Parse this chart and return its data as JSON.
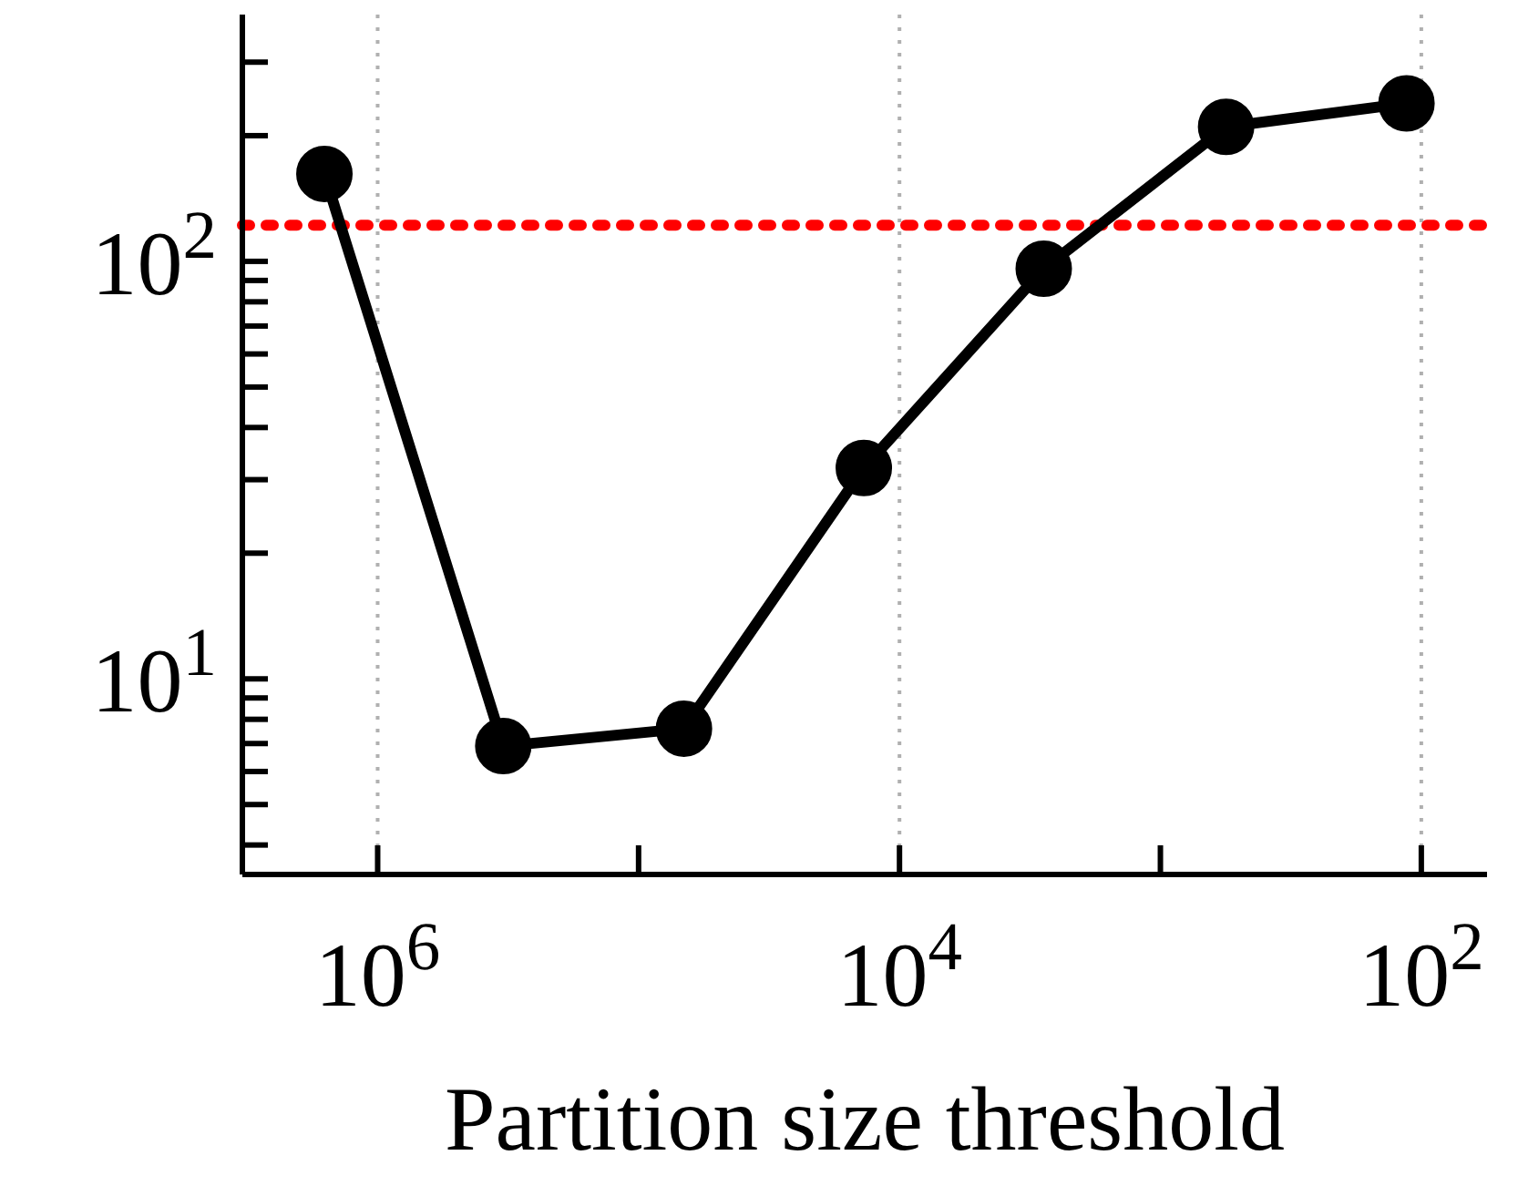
{
  "chart_data": {
    "type": "line",
    "xlabel": "Partition size threshold",
    "log": "xy",
    "grid": "x",
    "marker": "circle",
    "line_style": "solid",
    "x": [
      1600000,
      330000,
      67000,
      13700,
      2800,
      560,
      114
    ],
    "series": [
      {
        "color": "#000000",
        "values": [
          162,
          6.9,
          7.6,
          32,
          96,
          210,
          239
        ]
      }
    ],
    "xlim": [
      3300000,
      56
    ],
    "xticks": [
      {
        "value": 1000000,
        "label": "10$^{6}$"
      },
      {
        "value": 100000,
        "label": null
      },
      {
        "value": 10000,
        "label": "10$^{4}$"
      },
      {
        "value": 1000,
        "label": null
      },
      {
        "value": 100,
        "label": "10$^{2}$"
      }
    ],
    "ylim": [
      3.4,
      390
    ],
    "yticks": [
      {
        "value": 4,
        "label": null
      },
      {
        "value": 5,
        "label": null
      },
      {
        "value": 6,
        "label": null
      },
      {
        "value": 7,
        "label": null
      },
      {
        "value": 8,
        "label": null
      },
      {
        "value": 9,
        "label": null
      },
      {
        "value": 10,
        "label": "10$^{1}$"
      },
      {
        "value": 20,
        "label": null
      },
      {
        "value": 30,
        "label": null
      },
      {
        "value": 40,
        "label": null
      },
      {
        "value": 50,
        "label": null
      },
      {
        "value": 60,
        "label": null
      },
      {
        "value": 70,
        "label": null
      },
      {
        "value": 80,
        "label": null
      },
      {
        "value": 90,
        "label": null
      },
      {
        "value": 100,
        "label": "10$^{2}$"
      },
      {
        "value": 200,
        "label": null
      },
      {
        "value": 300,
        "label": null
      }
    ],
    "ref_lines": [
      {
        "axis": "y",
        "value": 122,
        "color": "#ff0000",
        "line_style": "dotted"
      }
    ]
  }
}
